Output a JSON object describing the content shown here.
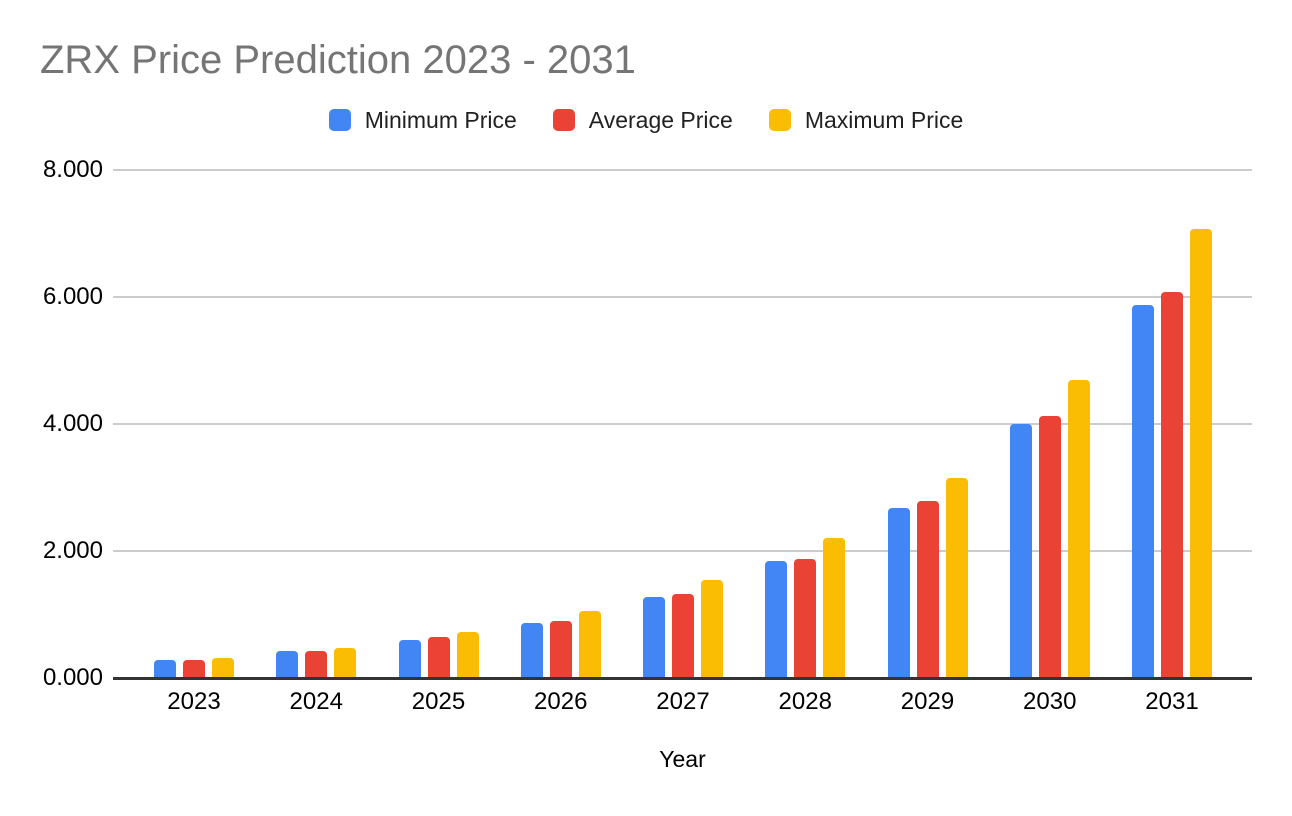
{
  "header": {
    "title": "ZRX Price Prediction 2023 - 2031",
    "title_color": "#757575"
  },
  "legend": {
    "items": [
      {
        "label": "Minimum Price",
        "color": "#4285F4"
      },
      {
        "label": "Average Price",
        "color": "#EA4335"
      },
      {
        "label": "Maximum Price",
        "color": "#FBBC04"
      }
    ]
  },
  "axes": {
    "x_title": "Year",
    "y_tick_labels": [
      "0.000",
      "2.000",
      "4.000",
      "6.000",
      "8.000"
    ],
    "x_tick_labels": [
      "2023",
      "2024",
      "2025",
      "2026",
      "2027",
      "2028",
      "2029",
      "2030",
      "2031"
    ]
  },
  "colors": {
    "background": "#ffffff",
    "gridline": "#cccccc",
    "axis_line": "#333333",
    "axis_text": "#000000",
    "legend_text": "#212121"
  },
  "chart_data": {
    "type": "bar",
    "title": "ZRX Price Prediction 2023 - 2031",
    "xlabel": "Year",
    "ylabel": "",
    "categories": [
      "2023",
      "2024",
      "2025",
      "2026",
      "2027",
      "2028",
      "2029",
      "2030",
      "2031"
    ],
    "series": [
      {
        "name": "Minimum Price",
        "color": "#4285F4",
        "values": [
          0.28,
          0.42,
          0.6,
          0.86,
          1.27,
          1.84,
          2.67,
          4.0,
          5.87
        ]
      },
      {
        "name": "Average Price",
        "color": "#EA4335",
        "values": [
          0.29,
          0.43,
          0.64,
          0.89,
          1.33,
          1.87,
          2.78,
          4.13,
          6.08
        ]
      },
      {
        "name": "Maximum Price",
        "color": "#FBBC04",
        "values": [
          0.32,
          0.48,
          0.73,
          1.05,
          1.55,
          2.21,
          3.15,
          4.7,
          7.07
        ]
      }
    ],
    "ylim": [
      0,
      8
    ],
    "y_ticks": [
      0,
      2,
      4,
      6,
      8
    ],
    "grid": true,
    "legend_position": "top"
  }
}
